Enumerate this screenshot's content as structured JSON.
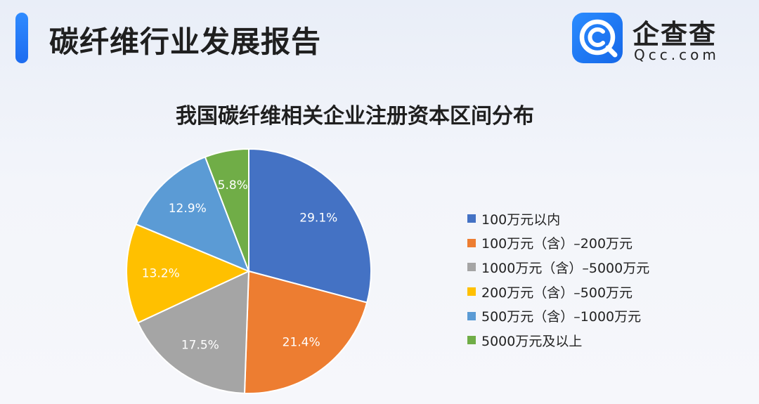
{
  "header": {
    "title": "碳纤维行业发展报告",
    "accent_color": "#1f78f5"
  },
  "logo": {
    "name": "企查查",
    "domain": "Qcc.com",
    "icon": "qcc-magnifier-logo-icon",
    "color": "#1a73f0"
  },
  "chart_data": {
    "type": "pie",
    "title": "我国碳纤维相关企业注册资本区间分布",
    "legend_position": "right",
    "categories": [
      "100万元以内",
      "100万元（含）–200万元",
      "1000万元（含）–5000万元",
      "200万元（含）–500万元",
      "500万元（含）–1000万元",
      "5000万元及以上"
    ],
    "values": [
      29.1,
      21.4,
      17.5,
      13.2,
      12.9,
      5.8
    ],
    "labels": [
      "29.1%",
      "21.4%",
      "17.5%",
      "13.2%",
      "12.9%",
      "5.8%"
    ],
    "colors": [
      "#4472c4",
      "#ed7d31",
      "#a5a5a5",
      "#ffc000",
      "#5b9bd5",
      "#70ad47"
    ]
  }
}
